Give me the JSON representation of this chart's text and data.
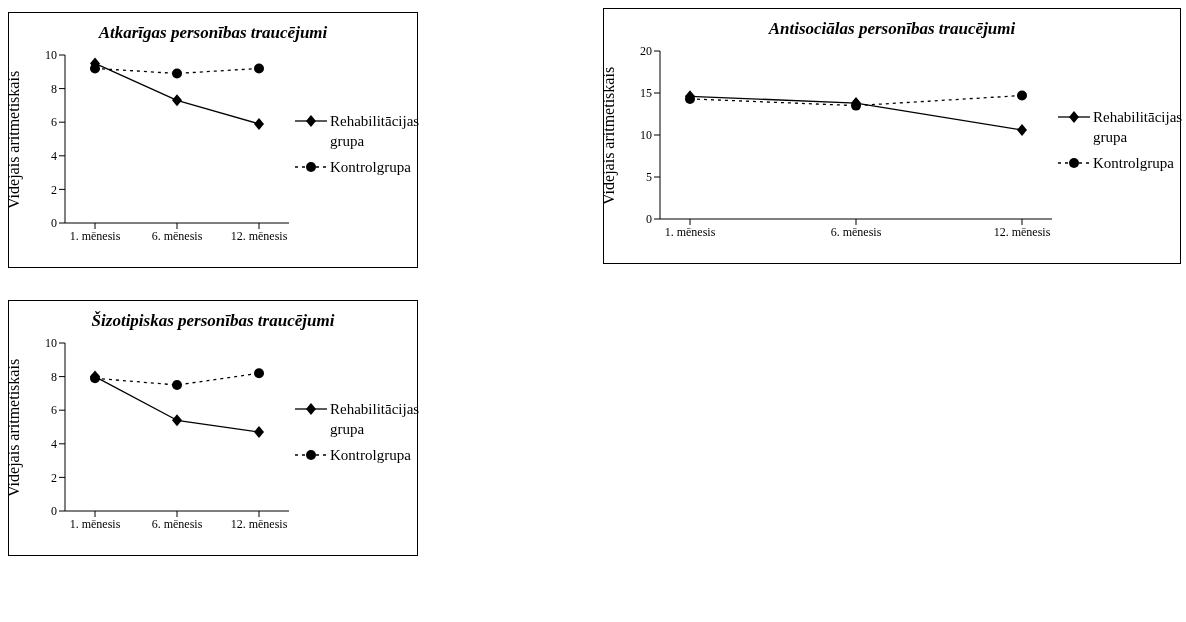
{
  "chart_data": [
    {
      "type": "line",
      "title": "Atkarīgas personības traucējumi",
      "ylabel": "Vidējais aritmētiskais",
      "categories": [
        "1. mēnesis",
        "6. mēnesis",
        "12. mēnesis"
      ],
      "ylim": [
        0,
        10
      ],
      "yticks": [
        0,
        2,
        4,
        6,
        8,
        10
      ],
      "grid": false,
      "legend": "right",
      "series": [
        {
          "name": "Rehabilitācijas grupa",
          "color": "#000000",
          "marker": "diamond",
          "line_style": "solid",
          "values": [
            9.5,
            7.3,
            5.9
          ]
        },
        {
          "name": "Kontrolgrupa",
          "color": "#000000",
          "marker": "circle",
          "line_style": "dotted",
          "values": [
            9.2,
            8.9,
            9.2
          ]
        }
      ]
    },
    {
      "type": "line",
      "title": "Antisociālas personības traucējumi",
      "ylabel": "Vidējais aritmētiskais",
      "categories": [
        "1. mēnesis",
        "6. mēnesis",
        "12. mēnesis"
      ],
      "ylim": [
        0,
        20
      ],
      "yticks": [
        0,
        5,
        10,
        15,
        20
      ],
      "grid": false,
      "legend": "right",
      "series": [
        {
          "name": "Rehabilitācijas grupa",
          "color": "#000000",
          "marker": "diamond",
          "line_style": "solid",
          "values": [
            14.6,
            13.8,
            10.6
          ]
        },
        {
          "name": "Kontrolgrupa",
          "color": "#000000",
          "marker": "circle",
          "line_style": "dotted",
          "values": [
            14.3,
            13.5,
            14.7
          ]
        }
      ]
    },
    {
      "type": "line",
      "title": "Šizotipiskas personības traucējumi",
      "ylabel": "Vidējais aritmētiskais",
      "categories": [
        "1. mēnesis",
        "6. mēnesis",
        "12. mēnesis"
      ],
      "ylim": [
        0,
        10
      ],
      "yticks": [
        0,
        2,
        4,
        6,
        8,
        10
      ],
      "grid": false,
      "legend": "right",
      "series": [
        {
          "name": "Rehabilitācijas grupa",
          "color": "#000000",
          "marker": "diamond",
          "line_style": "solid",
          "values": [
            8.0,
            5.4,
            4.7
          ]
        },
        {
          "name": "Kontrolgrupa",
          "color": "#000000",
          "marker": "circle",
          "line_style": "dotted",
          "values": [
            7.9,
            7.5,
            8.2
          ]
        }
      ]
    }
  ]
}
